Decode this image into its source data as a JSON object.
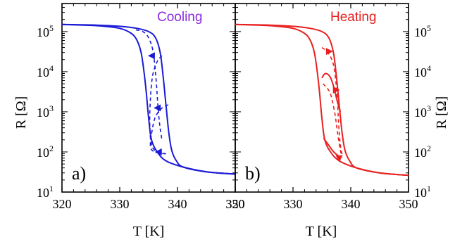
{
  "figure": {
    "ylabel": "R [Ω]",
    "xlabel": "T [K]"
  },
  "chart_data": [
    {
      "type": "line",
      "panel_label": "a)",
      "legend_text": "Cooling",
      "xlabel": "T [K]",
      "ylabel": "R [Ω]",
      "xlim": [
        320,
        350
      ],
      "ylim": [
        10,
        500000
      ],
      "yscale": "log",
      "x_ticks": [
        "320",
        "330",
        "340",
        "350"
      ],
      "y_ticks": [
        {
          "base": "10",
          "exp": "1"
        },
        {
          "base": "10",
          "exp": "2"
        },
        {
          "base": "10",
          "exp": "3"
        },
        {
          "base": "10",
          "exp": "4"
        },
        {
          "base": "10",
          "exp": "5"
        }
      ],
      "color": "#1a1ad6",
      "legend_color": "#8a2be2",
      "grid": false,
      "series": [
        {
          "style": "solid",
          "x": [
            320,
            326,
            330,
            332,
            333,
            333.7,
            334.2,
            334.6,
            335,
            335.5,
            336.5,
            338,
            341,
            345,
            350
          ],
          "y": [
            150000,
            140000,
            120000,
            90000,
            60000,
            30000,
            10000,
            3000,
            700,
            200,
            100,
            60,
            42,
            32,
            28
          ]
        },
        {
          "style": "solid",
          "x": [
            320,
            326,
            330,
            333,
            335,
            336.2,
            337,
            337.5,
            338,
            338.5,
            339,
            339.8,
            341,
            345,
            350
          ],
          "y": [
            150000,
            145000,
            135000,
            120000,
            100000,
            70000,
            30000,
            8000,
            1500,
            300,
            110,
            60,
            42,
            32,
            28
          ]
        },
        {
          "style": "dashed",
          "x": [
            337.3,
            336.5,
            335.7,
            335.3,
            335.2,
            335.5,
            336.5,
            338
          ],
          "y": [
            25000,
            18000,
            8000,
            2000,
            500,
            150,
            100,
            90
          ]
        },
        {
          "style": "dashed",
          "x": [
            338.4,
            337.2,
            336.1,
            335.5,
            335.3,
            335.6,
            336.6,
            338
          ],
          "y": [
            1500,
            1200,
            700,
            280,
            150,
            110,
            95,
            90
          ]
        },
        {
          "style": "dashed",
          "x": [
            332.8,
            334,
            335,
            335.8,
            336.3,
            336.6,
            336.9,
            337.3
          ],
          "y": [
            110000,
            100000,
            70000,
            30000,
            6000,
            1500,
            500,
            200
          ]
        }
      ],
      "arrows": [
        {
          "x": 335.6,
          "y": 25000,
          "dir": "left"
        },
        {
          "x": 336.6,
          "y": 1250,
          "dir": "left"
        },
        {
          "x": 336.8,
          "y": 100,
          "dir": "left"
        }
      ]
    },
    {
      "type": "line",
      "panel_label": "b)",
      "legend_text": "Heating",
      "xlabel": "T [K]",
      "ylabel": "R [Ω]",
      "xlim": [
        320,
        350
      ],
      "ylim": [
        10,
        500000
      ],
      "yscale": "log",
      "x_ticks": [
        "320",
        "330",
        "340",
        "350"
      ],
      "y_ticks": [
        {
          "base": "10",
          "exp": "1"
        },
        {
          "base": "10",
          "exp": "2"
        },
        {
          "base": "10",
          "exp": "3"
        },
        {
          "base": "10",
          "exp": "4"
        },
        {
          "base": "10",
          "exp": "5"
        }
      ],
      "color": "#e82020",
      "legend_color": "#e82020",
      "grid": false,
      "series": [
        {
          "style": "solid",
          "x": [
            320,
            326,
            330,
            332,
            333,
            333.7,
            334.2,
            334.6,
            335,
            335.5,
            336.5,
            338,
            341,
            345,
            350
          ],
          "y": [
            150000,
            140000,
            120000,
            90000,
            60000,
            30000,
            10000,
            3000,
            700,
            200,
            100,
            60,
            40,
            30,
            26
          ]
        },
        {
          "style": "solid",
          "x": [
            320,
            326,
            330,
            333,
            335,
            336.2,
            337,
            337.5,
            338,
            338.5,
            339,
            339.8,
            341,
            345,
            350
          ],
          "y": [
            150000,
            145000,
            135000,
            120000,
            100000,
            70000,
            30000,
            8000,
            1500,
            300,
            110,
            60,
            40,
            30,
            26
          ]
        },
        {
          "style": "solid",
          "x": [
            335,
            335.6,
            336.4,
            337.1,
            337.6,
            338.2
          ],
          "y": [
            7000,
            9000,
            7500,
            4000,
            2000,
            1000
          ]
        },
        {
          "style": "solid",
          "x": [
            335.3,
            336,
            336.8,
            337.6,
            338.2
          ],
          "y": [
            220,
            160,
            110,
            85,
            75
          ]
        },
        {
          "style": "dashed",
          "x": [
            335,
            336,
            337,
            337.6,
            337.9,
            338.2,
            338.6
          ],
          "y": [
            40000,
            30000,
            15000,
            3000,
            500,
            150,
            75
          ]
        },
        {
          "style": "dashed",
          "x": [
            335.2,
            336.4,
            337.2,
            337.6,
            338,
            338.4
          ],
          "y": [
            5000,
            3000,
            1000,
            400,
            160,
            80
          ]
        }
      ],
      "arrows": [
        {
          "x": 336.2,
          "y": 32000,
          "dir": "right"
        },
        {
          "x": 337.4,
          "y": 3500,
          "dir": "right"
        },
        {
          "x": 338.0,
          "y": 70,
          "dir": "down"
        }
      ]
    }
  ]
}
